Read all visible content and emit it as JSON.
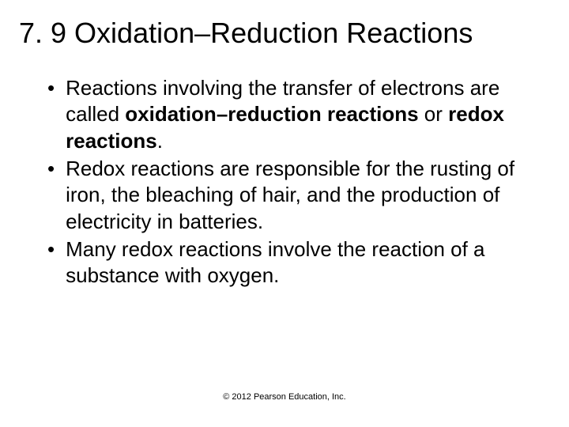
{
  "title": "7. 9 Oxidation–Reduction Reactions",
  "bullets": [
    {
      "segments": [
        {
          "text": "Reactions involving the transfer of electrons are called ",
          "bold": false
        },
        {
          "text": "oxidation–reduction reactions",
          "bold": true
        },
        {
          "text": " or ",
          "bold": false
        },
        {
          "text": "redox reactions",
          "bold": true
        },
        {
          "text": ".",
          "bold": false
        }
      ]
    },
    {
      "segments": [
        {
          "text": "Redox reactions are responsible for the rusting of iron, the bleaching of hair, and the production of electricity in batteries.",
          "bold": false
        }
      ]
    },
    {
      "segments": [
        {
          "text": "Many redox reactions involve the reaction of a substance with oxygen.",
          "bold": false
        }
      ]
    }
  ],
  "footer": "© 2012 Pearson Education, Inc.",
  "colors": {
    "background": "#ffffff",
    "text": "#000000"
  },
  "typography": {
    "title_fontsize": 36,
    "body_fontsize": 26,
    "footer_fontsize": 11,
    "font_family": "Arial"
  }
}
